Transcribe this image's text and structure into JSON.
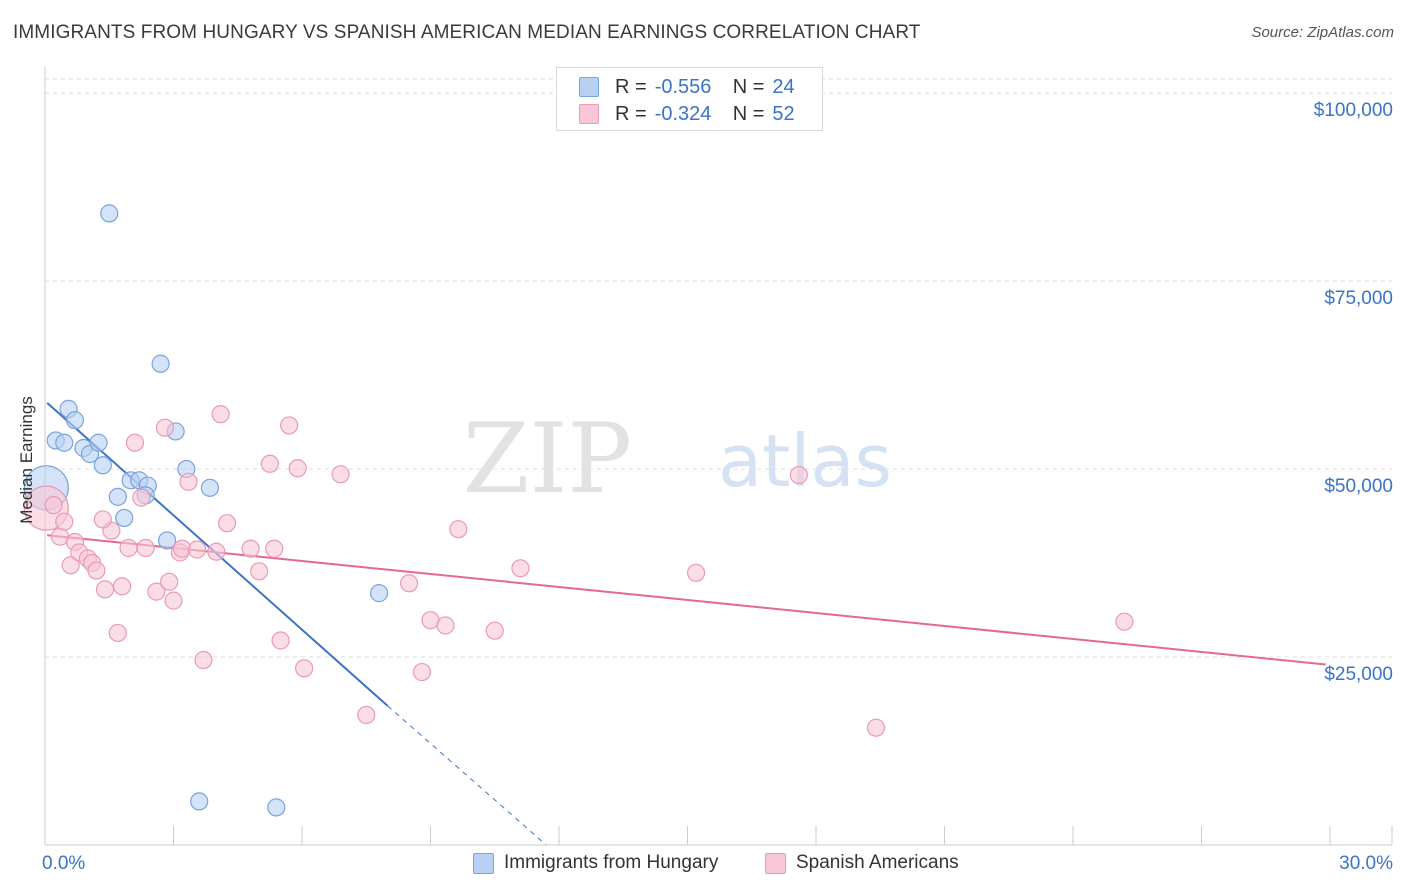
{
  "title": "IMMIGRANTS FROM HUNGARY VS SPANISH AMERICAN MEDIAN EARNINGS CORRELATION CHART",
  "source": "Source: ZipAtlas.com",
  "watermark": {
    "zip": "ZIP",
    "atlas": "atlas"
  },
  "legend": {
    "r_label": "R =",
    "n_label": "N =",
    "rows": [
      {
        "r": "-0.556",
        "n": "24",
        "fill": "#b8d0f2",
        "stroke": "#7aa3dc"
      },
      {
        "r": "-0.324",
        "n": "52",
        "fill": "#f9c6d6",
        "stroke": "#e99ab5"
      }
    ]
  },
  "chart_data": {
    "type": "scatter",
    "title": "IMMIGRANTS FROM HUNGARY VS SPANISH AMERICAN MEDIAN EARNINGS CORRELATION CHART",
    "xlabel": "",
    "ylabel": "Median Earnings",
    "xlim": [
      0,
      30
    ],
    "ylim": [
      0,
      104000
    ],
    "x_tick_labels": {
      "left": "0.0%",
      "right": "30.0%"
    },
    "y_ticks": [
      {
        "value": 25000,
        "label": "$25,000"
      },
      {
        "value": 50000,
        "label": "$50,000"
      },
      {
        "value": 75000,
        "label": "$75,000"
      },
      {
        "value": 100000,
        "label": "$100,000"
      }
    ],
    "series": [
      {
        "name": "Immigrants from Hungary",
        "color": "#3b73c8",
        "fill": "#b8d0f2",
        "stroke": "#7aa3dc",
        "points": [
          {
            "x": 0.03,
            "y": 47500,
            "big": true
          },
          {
            "x": 0.55,
            "y": 58000
          },
          {
            "x": 0.7,
            "y": 56500
          },
          {
            "x": 0.25,
            "y": 53800
          },
          {
            "x": 0.45,
            "y": 53500
          },
          {
            "x": 0.9,
            "y": 52800
          },
          {
            "x": 1.05,
            "y": 52000
          },
          {
            "x": 1.25,
            "y": 53500
          },
          {
            "x": 1.35,
            "y": 50500
          },
          {
            "x": 1.5,
            "y": 84000
          },
          {
            "x": 2.0,
            "y": 48500
          },
          {
            "x": 2.2,
            "y": 48500
          },
          {
            "x": 2.4,
            "y": 47800
          },
          {
            "x": 1.7,
            "y": 46300
          },
          {
            "x": 2.35,
            "y": 46500
          },
          {
            "x": 1.85,
            "y": 43500
          },
          {
            "x": 2.7,
            "y": 64000
          },
          {
            "x": 3.05,
            "y": 55000
          },
          {
            "x": 3.3,
            "y": 50000
          },
          {
            "x": 3.85,
            "y": 47500
          },
          {
            "x": 2.85,
            "y": 40500
          },
          {
            "x": 7.8,
            "y": 33500
          },
          {
            "x": 3.6,
            "y": 5800
          },
          {
            "x": 5.4,
            "y": 5000
          }
        ],
        "trend": {
          "x0": 0.05,
          "y0": 58800,
          "x1": 8.0,
          "y1": 18500,
          "dash_to_x": 11.7,
          "dash_to_y": 0
        }
      },
      {
        "name": "Spanish Americans",
        "color": "#e56892",
        "fill": "#f9c6d6",
        "stroke": "#e99ab5",
        "points": [
          {
            "x": 0.03,
            "y": 44800,
            "big": true
          },
          {
            "x": 0.2,
            "y": 45200
          },
          {
            "x": 0.35,
            "y": 41000
          },
          {
            "x": 0.45,
            "y": 43000
          },
          {
            "x": 0.6,
            "y": 37200
          },
          {
            "x": 0.7,
            "y": 40300
          },
          {
            "x": 0.8,
            "y": 38900
          },
          {
            "x": 1.0,
            "y": 38100
          },
          {
            "x": 1.1,
            "y": 37500
          },
          {
            "x": 1.2,
            "y": 36500
          },
          {
            "x": 1.4,
            "y": 34000
          },
          {
            "x": 1.55,
            "y": 41800
          },
          {
            "x": 1.7,
            "y": 28200
          },
          {
            "x": 1.8,
            "y": 34400
          },
          {
            "x": 1.35,
            "y": 43300
          },
          {
            "x": 1.95,
            "y": 39500
          },
          {
            "x": 2.1,
            "y": 53500
          },
          {
            "x": 2.25,
            "y": 46200
          },
          {
            "x": 2.35,
            "y": 39500
          },
          {
            "x": 2.6,
            "y": 33700
          },
          {
            "x": 2.8,
            "y": 55500
          },
          {
            "x": 2.9,
            "y": 35000
          },
          {
            "x": 3.0,
            "y": 32500
          },
          {
            "x": 3.15,
            "y": 38900
          },
          {
            "x": 3.2,
            "y": 39400
          },
          {
            "x": 3.35,
            "y": 48300
          },
          {
            "x": 3.55,
            "y": 39300
          },
          {
            "x": 3.7,
            "y": 24600
          },
          {
            "x": 4.0,
            "y": 39000
          },
          {
            "x": 4.1,
            "y": 57300
          },
          {
            "x": 4.25,
            "y": 42800
          },
          {
            "x": 4.8,
            "y": 39400
          },
          {
            "x": 5.0,
            "y": 36400
          },
          {
            "x": 5.25,
            "y": 50700
          },
          {
            "x": 5.35,
            "y": 39400
          },
          {
            "x": 5.5,
            "y": 27200
          },
          {
            "x": 5.7,
            "y": 55800
          },
          {
            "x": 5.9,
            "y": 50100
          },
          {
            "x": 6.05,
            "y": 23500
          },
          {
            "x": 6.9,
            "y": 49300
          },
          {
            "x": 7.5,
            "y": 17300
          },
          {
            "x": 8.5,
            "y": 34800
          },
          {
            "x": 8.8,
            "y": 23000
          },
          {
            "x": 9.0,
            "y": 29900
          },
          {
            "x": 9.35,
            "y": 29200
          },
          {
            "x": 9.65,
            "y": 42000
          },
          {
            "x": 10.5,
            "y": 28500
          },
          {
            "x": 11.1,
            "y": 36800
          },
          {
            "x": 15.2,
            "y": 36200
          },
          {
            "x": 17.6,
            "y": 49200
          },
          {
            "x": 19.4,
            "y": 15600
          },
          {
            "x": 25.2,
            "y": 29700
          }
        ],
        "trend": {
          "x0": 0.05,
          "y0": 41200,
          "x1": 29.9,
          "y1": 24000
        }
      }
    ]
  }
}
